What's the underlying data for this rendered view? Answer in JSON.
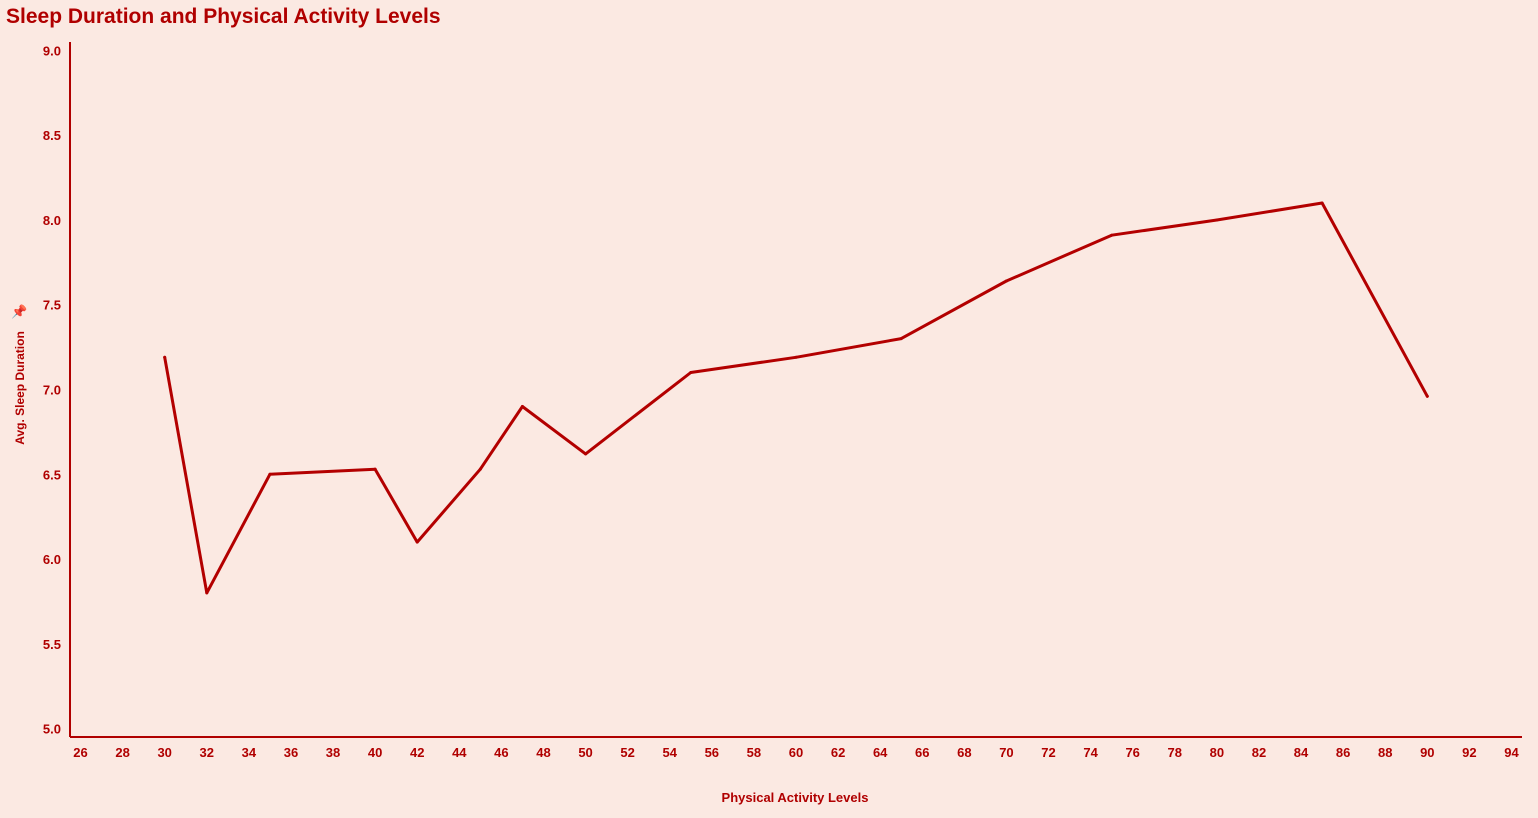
{
  "chart_data": {
    "type": "line",
    "title": "Sleep Duration and Physical Activity Levels",
    "xlabel": "Physical Activity Levels",
    "ylabel": "Avg. Sleep Duration",
    "xlim": [
      25.5,
      94.5
    ],
    "ylim": [
      4.95,
      9.05
    ],
    "xticks": [
      26,
      28,
      30,
      32,
      34,
      36,
      38,
      40,
      42,
      44,
      46,
      48,
      50,
      52,
      54,
      56,
      58,
      60,
      62,
      64,
      66,
      68,
      70,
      72,
      74,
      76,
      78,
      80,
      82,
      84,
      86,
      88,
      90,
      92,
      94
    ],
    "yticks": [
      "5.0",
      "5.5",
      "6.0",
      "6.5",
      "7.0",
      "7.5",
      "8.0",
      "8.5",
      "9.0"
    ],
    "grid": false,
    "line_color": "#b30000",
    "text_color": "#b00000",
    "x": [
      30,
      32,
      35,
      40,
      42,
      45,
      47,
      50,
      55,
      60,
      65,
      70,
      75,
      80,
      85,
      90
    ],
    "y": [
      7.19,
      5.8,
      6.5,
      6.53,
      6.1,
      6.53,
      6.9,
      6.62,
      7.1,
      7.19,
      7.3,
      7.64,
      7.91,
      8.0,
      8.1,
      6.96
    ]
  },
  "icons": {
    "pin": "📌"
  }
}
